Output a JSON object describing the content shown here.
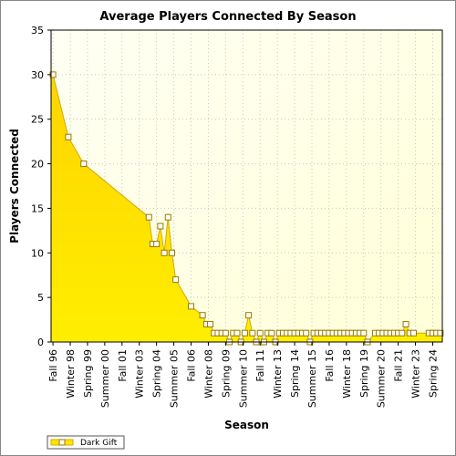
{
  "chart_data": {
    "type": "area",
    "title": "Average Players Connected By Season",
    "xlabel": "Season",
    "ylabel": "Players Connected",
    "ylim": [
      0,
      35
    ],
    "yticks": [
      0,
      5,
      10,
      15,
      20,
      25,
      30,
      35
    ],
    "grid": true,
    "legend_position": "bottom-left",
    "colors": {
      "fill": "#ffe600",
      "fill_top": "#ffd400",
      "line": "#d4a800",
      "marker_fill": "#ffffff",
      "marker_stroke": "#9a7a00",
      "plot_background": "#ffffee",
      "grid": "#c8c8c8"
    },
    "x_labels": [
      "Fall 96",
      "Winter 98",
      "Spring 99",
      "Summer 00",
      "Fall 01",
      "Winter 03",
      "Spring 04",
      "Summer 05",
      "Fall 06",
      "Winter 08",
      "Spring 09",
      "Summer 10",
      "Fall 11",
      "Winter 13",
      "Spring 14",
      "Summer 15",
      "Fall 16",
      "Winter 18",
      "Spring 19",
      "Summer 20",
      "Fall 21",
      "Winter 23",
      "Spring 24"
    ],
    "series": [
      {
        "name": "Dark Gift",
        "values": [
          30,
          23,
          20,
          14,
          11,
          11,
          13,
          10,
          14,
          10,
          7,
          4,
          3,
          2,
          2,
          1,
          1,
          1,
          1,
          0,
          1,
          1,
          0,
          1,
          3,
          1,
          0,
          1,
          0,
          1,
          1,
          0,
          1,
          1,
          1,
          1,
          1,
          1,
          1,
          1,
          0,
          1,
          1,
          1,
          1,
          1,
          1,
          1,
          1,
          1,
          1,
          1,
          1,
          1,
          1,
          0,
          1,
          1,
          1,
          1,
          1,
          1,
          1,
          1,
          2,
          1,
          1,
          1,
          1,
          1,
          1
        ],
        "slots": [
          0,
          4,
          8,
          25,
          26,
          27,
          28,
          29,
          30,
          31,
          32,
          36,
          39,
          40,
          41,
          42,
          43,
          44,
          45,
          46,
          47,
          48,
          49,
          50,
          51,
          52,
          53,
          54,
          55,
          56,
          57,
          58,
          59,
          60,
          61,
          62,
          63,
          64,
          65,
          66,
          67,
          68,
          69,
          70,
          71,
          72,
          73,
          74,
          75,
          76,
          77,
          78,
          79,
          80,
          81,
          82,
          84,
          85,
          86,
          87,
          88,
          89,
          90,
          91,
          92,
          93,
          94,
          98,
          99,
          100,
          101
        ]
      }
    ]
  }
}
